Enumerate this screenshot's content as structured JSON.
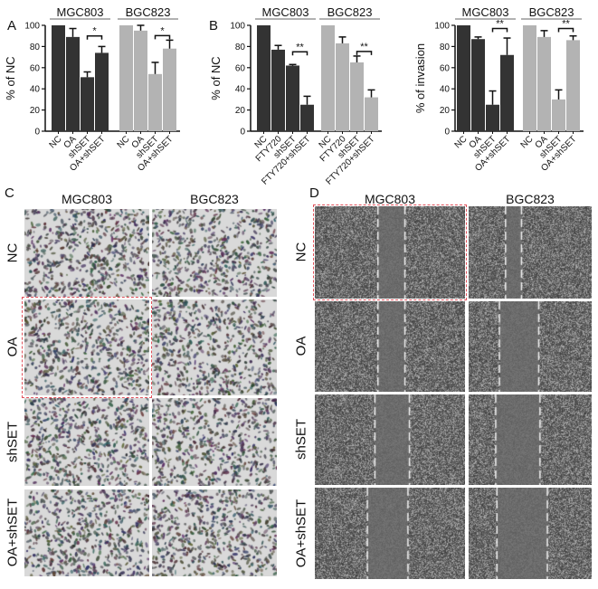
{
  "chart_data": [
    {
      "type": "bar",
      "panel": "A",
      "ylabel": "% of NC",
      "ylim": [
        0,
        100
      ],
      "yticks": [
        0,
        20,
        40,
        60,
        80,
        100
      ],
      "groups": [
        {
          "name": "MGC803",
          "color": "#333333",
          "categories": [
            "NC",
            "OA",
            "shSET",
            "OA+shSET"
          ],
          "values": [
            100,
            89,
            51,
            74
          ],
          "errors": [
            0,
            8,
            5,
            6
          ],
          "significance": {
            "between": [
              "shSET",
              "OA+shSET"
            ],
            "label": "*"
          }
        },
        {
          "name": "BGC823",
          "color": "#b3b3b3",
          "categories": [
            "NC",
            "OA",
            "shSET",
            "OA+shSET"
          ],
          "values": [
            100,
            95,
            54,
            78
          ],
          "errors": [
            0,
            5,
            11,
            8
          ],
          "significance": {
            "between": [
              "shSET",
              "OA+shSET"
            ],
            "label": "*"
          }
        }
      ]
    },
    {
      "type": "bar",
      "panel": "B",
      "ylabel": "% of NC",
      "ylim": [
        0,
        100
      ],
      "yticks": [
        0,
        20,
        40,
        60,
        80,
        100
      ],
      "groups": [
        {
          "name": "MGC803",
          "color": "#333333",
          "categories": [
            "NC",
            "FTY720",
            "shSET",
            "FTY720+shSET"
          ],
          "values": [
            100,
            77,
            62,
            25
          ],
          "errors": [
            0,
            4,
            1,
            8
          ],
          "significance": {
            "between": [
              "shSET",
              "FTY720+shSET"
            ],
            "label": "**"
          }
        },
        {
          "name": "BGC823",
          "color": "#b3b3b3",
          "categories": [
            "NC",
            "FTY720",
            "shSET",
            "FTY720+shSET"
          ],
          "values": [
            100,
            83,
            65,
            32
          ],
          "errors": [
            0,
            6,
            6,
            7
          ],
          "significance": {
            "between": [
              "shSET",
              "FTY720+shSET"
            ],
            "label": "**"
          }
        }
      ]
    },
    {
      "type": "bar",
      "panel": "",
      "ylabel": "% of invasion",
      "ylim": [
        0,
        100
      ],
      "yticks": [
        0,
        20,
        40,
        60,
        80,
        100
      ],
      "groups": [
        {
          "name": "MGC803",
          "color": "#333333",
          "categories": [
            "NC",
            "OA",
            "shSET",
            "OA+shSET"
          ],
          "values": [
            100,
            87,
            25,
            72
          ],
          "errors": [
            0,
            2,
            13,
            16
          ],
          "significance": {
            "between": [
              "shSET",
              "OA+shSET"
            ],
            "label": "**"
          }
        },
        {
          "name": "BGC823",
          "color": "#b3b3b3",
          "categories": [
            "NC",
            "OA",
            "shSET",
            "OA+shSET"
          ],
          "values": [
            100,
            89,
            30,
            86
          ],
          "errors": [
            0,
            6,
            9,
            4
          ],
          "significance": {
            "between": [
              "shSET",
              "OA+shSET"
            ],
            "label": "**"
          }
        }
      ]
    }
  ],
  "panel_c": {
    "label": "C",
    "columns": [
      "MGC803",
      "BGC823"
    ],
    "rows": [
      "NC",
      "OA",
      "shSET",
      "OA+shSET"
    ],
    "highlight": {
      "row": "OA",
      "column": "MGC803",
      "color": "#e0505a"
    }
  },
  "panel_d": {
    "label": "D",
    "columns": [
      "MGC803",
      "BGC823"
    ],
    "rows": [
      "NC",
      "OA",
      "shSET",
      "OA+shSET"
    ],
    "highlight": {
      "row": "NC",
      "column": "MGC803",
      "color": "#e0505a"
    }
  }
}
